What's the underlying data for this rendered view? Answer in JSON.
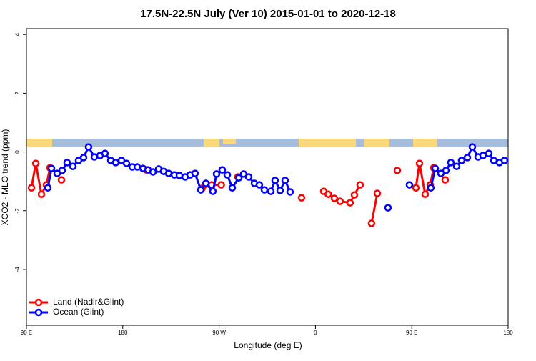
{
  "chart_data": {
    "type": "line",
    "title": "17.5N-22.5N July (Ver 10)   2015-01-01 to 2020-12-18",
    "x_label": "Longitude (deg E)",
    "y_label": "XCO2 - MLO trend (ppm)",
    "xlim": [
      90,
      540
    ],
    "ylim": [
      -5.9,
      4.2
    ],
    "xticks": [
      {
        "value": 90,
        "label": "90 E"
      },
      180,
      {
        "value": 270,
        "label": "90 W"
      },
      0,
      {
        "value": 450,
        "label": "90 E"
      },
      {
        "value": 540,
        "label": "180"
      }
    ],
    "yticks": [
      4,
      2,
      0,
      -2,
      -4
    ],
    "legend": "bottom-left",
    "series": [
      {
        "name": "Land (Nadir&Glint)",
        "color": "#ff0000",
        "x": [
          94.7,
          98.7,
          104,
          108.7,
          112,
          null,
          122.7,
          null,
          202,
          null,
          254,
          263,
          272,
          null,
          287.6,
          null,
          347,
          null,
          367.7,
          372,
          377.7,
          383,
          392.4,
          396.4,
          401.7,
          null,
          412.4,
          417.8,
          null,
          436.5,
          null,
          453.8,
          457.2,
          462.5,
          467.2,
          470.5,
          null,
          481.2
        ],
        "values": [
          -1.22,
          -0.39,
          -1.44,
          -1.12,
          -0.54,
          null,
          -0.95,
          null,
          -0.61,
          null,
          -1.24,
          -1.12,
          -1.12,
          null,
          -0.85,
          null,
          -1.56,
          null,
          -1.34,
          -1.44,
          -1.58,
          -1.68,
          -1.73,
          -1.46,
          -1.12,
          null,
          -2.43,
          -1.41,
          null,
          -0.63,
          null,
          -1.22,
          -0.39,
          -1.44,
          -1.12,
          -0.54,
          null,
          -0.95
        ]
      },
      {
        "name": "Ocean (Glint)",
        "color": "#0000ff",
        "x": [
          110,
          113.4,
          118.7,
          123.4,
          128,
          133.4,
          138.7,
          143.4,
          148,
          153.4,
          158.8,
          163.4,
          168.8,
          173.4,
          178.8,
          183.5,
          188.8,
          193.5,
          198.8,
          203.5,
          208.2,
          213.5,
          218.2,
          222.8,
          228.2,
          232.9,
          238.2,
          242.9,
          247.5,
          252.9,
          257.6,
          264.2,
          267.6,
          272.9,
          277.6,
          282.3,
          288.3,
          292.9,
          297.6,
          303,
          307.6,
          312.3,
          318.3,
          322.3,
          327,
          331.7,
          336.3,
          null,
          427.8,
          null,
          447.8,
          null,
          467.8,
          471.9,
          477.2,
          481.9,
          486.5,
          491.9,
          496.5,
          501.9,
          506.6,
          511.9,
          516.6,
          521.9,
          526.6,
          531.9,
          536.6
        ],
        "values": [
          -1.22,
          -0.56,
          -0.73,
          -0.63,
          -0.36,
          -0.49,
          -0.29,
          -0.19,
          0.17,
          -0.17,
          -0.12,
          -0.05,
          -0.29,
          -0.36,
          -0.29,
          -0.39,
          -0.51,
          -0.51,
          -0.56,
          -0.61,
          -0.68,
          -0.58,
          -0.66,
          -0.73,
          -0.78,
          -0.8,
          -0.85,
          -0.78,
          -0.73,
          -1.29,
          -1.07,
          -1.34,
          -0.75,
          -0.61,
          -0.78,
          -1.22,
          -0.88,
          -0.75,
          -0.85,
          -1.07,
          -1.12,
          -1.29,
          -1.34,
          -0.97,
          -1.31,
          -0.97,
          -1.36,
          null,
          -1.9,
          null,
          -1.12,
          null,
          -1.22,
          -0.56,
          -0.73,
          -0.63,
          -0.36,
          -0.49,
          -0.29,
          -0.19,
          0.17,
          -0.17,
          -0.12,
          -0.05,
          -0.29,
          -0.36,
          -0.29
        ]
      }
    ]
  }
}
